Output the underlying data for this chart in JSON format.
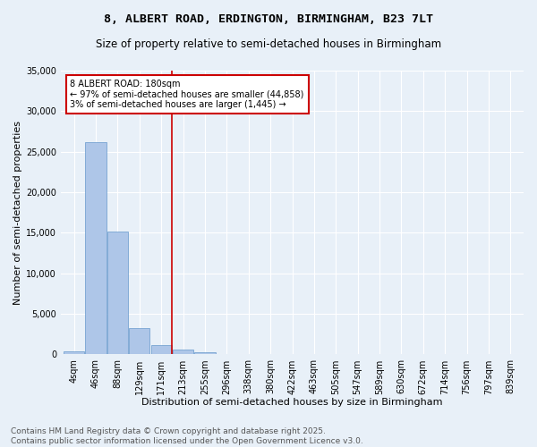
{
  "title_line1": "8, ALBERT ROAD, ERDINGTON, BIRMINGHAM, B23 7LT",
  "title_line2": "Size of property relative to semi-detached houses in Birmingham",
  "xlabel": "Distribution of semi-detached houses by size in Birmingham",
  "ylabel": "Number of semi-detached properties",
  "bin_labels": [
    "4sqm",
    "46sqm",
    "88sqm",
    "129sqm",
    "171sqm",
    "213sqm",
    "255sqm",
    "296sqm",
    "338sqm",
    "380sqm",
    "422sqm",
    "463sqm",
    "505sqm",
    "547sqm",
    "589sqm",
    "630sqm",
    "672sqm",
    "714sqm",
    "756sqm",
    "797sqm",
    "839sqm"
  ],
  "bar_values": [
    400,
    26200,
    15200,
    3300,
    1100,
    550,
    300,
    100,
    50,
    20,
    10,
    5,
    3,
    2,
    1,
    1,
    0,
    0,
    0,
    0,
    0
  ],
  "bar_color": "#aec6e8",
  "bar_edge_color": "#6699cc",
  "subject_label": "8 ALBERT ROAD: 180sqm",
  "annotation_line1": "← 97% of semi-detached houses are smaller (44,858)",
  "annotation_line2": "3% of semi-detached houses are larger (1,445) →",
  "vline_color": "#cc0000",
  "annotation_box_color": "#cc0000",
  "ylim": [
    0,
    35000
  ],
  "yticks": [
    0,
    5000,
    10000,
    15000,
    20000,
    25000,
    30000,
    35000
  ],
  "background_color": "#e8f0f8",
  "plot_bg_color": "#e8f0f8",
  "footer_line1": "Contains HM Land Registry data © Crown copyright and database right 2025.",
  "footer_line2": "Contains public sector information licensed under the Open Government Licence v3.0.",
  "title_fontsize": 9.5,
  "subtitle_fontsize": 8.5,
  "axis_label_fontsize": 8,
  "tick_fontsize": 7,
  "footer_fontsize": 6.5,
  "annotation_fontsize": 7,
  "vline_x_index": 4.48
}
